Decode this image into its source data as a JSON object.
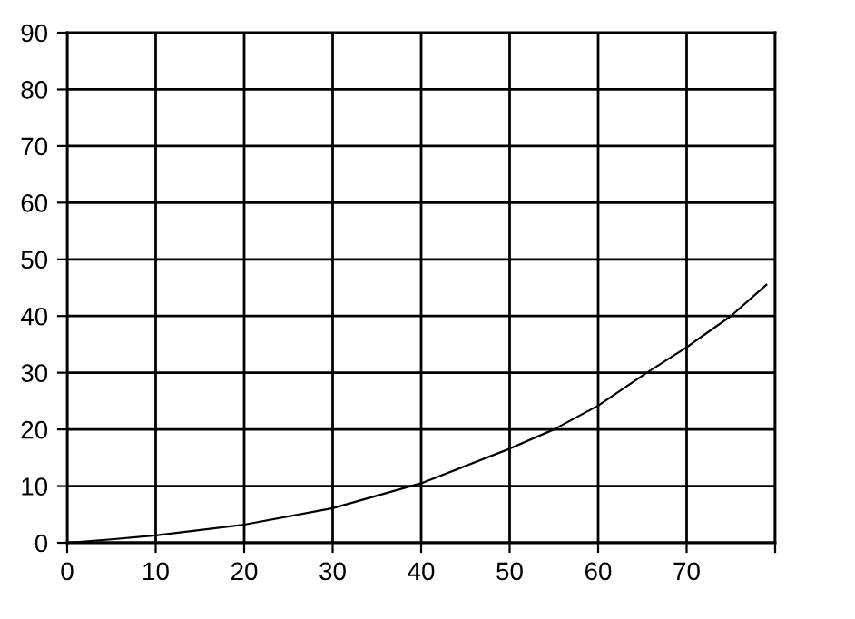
{
  "chart_data": {
    "type": "line",
    "x": [
      0,
      5,
      10,
      20,
      30,
      40,
      50,
      55,
      60,
      65.5,
      70,
      75,
      79
    ],
    "series": [
      {
        "color": "#000000",
        "values": [
          0,
          0.6,
          1.3,
          3.2,
          6.1,
          10.5,
          16.6,
          20,
          24.2,
          30,
          34.5,
          40,
          45.5
        ]
      }
    ],
    "xlim": [
      0,
      80
    ],
    "xticks": [
      0,
      10,
      20,
      30,
      40,
      50,
      60,
      70,
      {
        "value": 80,
        "label": null
      }
    ],
    "ylim": [
      0,
      90
    ],
    "yticks": [
      0,
      10,
      20,
      30,
      40,
      50,
      60,
      70,
      80,
      90
    ],
    "grid": true,
    "marker": "none",
    "line_style": "solid"
  }
}
